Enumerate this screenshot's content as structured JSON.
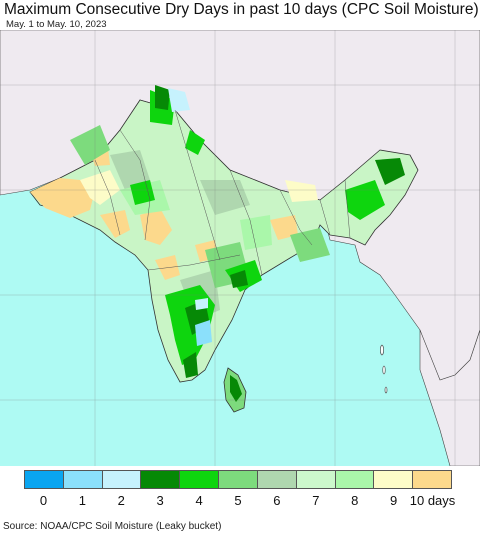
{
  "title": "Maximum Consecutive Dry Days in past 10 days (CPC Soil Moisture)",
  "subtitle": "May. 1 to May. 10, 2023",
  "source": "Source: NOAA/CPC Soil Moisture (Leaky bucket)",
  "colors": {
    "ocean": "#aefaf3",
    "outside": "#efeaf0",
    "border": "#333333"
  },
  "legend": [
    {
      "label": "0",
      "color": "#0aa5f0"
    },
    {
      "label": "1",
      "color": "#8be0fb"
    },
    {
      "label": "2",
      "color": "#c6f2fd"
    },
    {
      "label": "3",
      "color": "#068906"
    },
    {
      "label": "4",
      "color": "#0ed50e"
    },
    {
      "label": "5",
      "color": "#7ddb7d"
    },
    {
      "label": "6",
      "color": "#afd7af"
    },
    {
      "label": "7",
      "color": "#ccf8cc"
    },
    {
      "label": "8",
      "color": "#aaf7aa"
    },
    {
      "label": "9",
      "color": "#fdfcc8"
    },
    {
      "label": "10 days",
      "color": "#fcd98c"
    }
  ]
}
